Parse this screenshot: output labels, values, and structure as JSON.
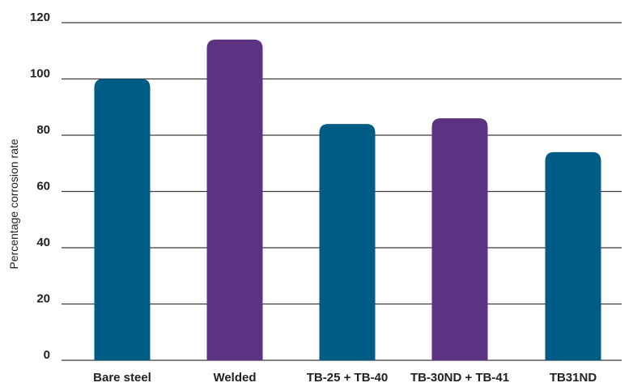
{
  "chart_data": {
    "type": "bar",
    "categories": [
      "Bare steel",
      "Welded",
      "TB-25 + TB-40",
      "TB-30ND + TB-41",
      "TB31ND"
    ],
    "values": [
      100,
      114,
      84,
      86,
      74
    ],
    "bar_colors": [
      "#005b85",
      "#5c3283",
      "#005b85",
      "#5c3283",
      "#005b85"
    ],
    "title": "",
    "xlabel": "",
    "ylabel": "Percentage corrosion rate",
    "ylim": [
      0,
      120
    ],
    "yticks": [
      0,
      20,
      40,
      60,
      80,
      100,
      120
    ],
    "grid": true,
    "legend": "none"
  }
}
